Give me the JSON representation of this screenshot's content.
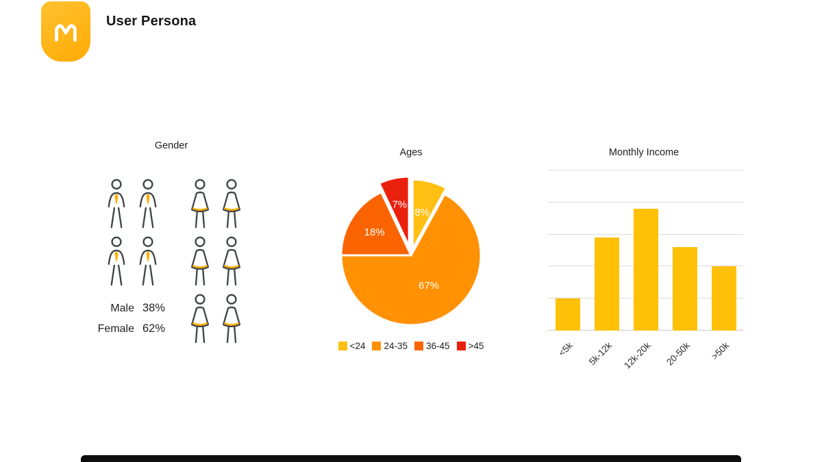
{
  "header": {
    "title": "User Persona"
  },
  "brand": {
    "logo_bg": "#FFB414",
    "glyph": "m-crown-icon"
  },
  "gender": {
    "icon_stroke": "#3F4447",
    "icon_accent": "#FFAD05"
  },
  "chart_data": [
    {
      "type": "pictogram",
      "title": "Gender",
      "categories": [
        "Male",
        "Female"
      ],
      "values": [
        38,
        62
      ],
      "unit": "%",
      "value_labels": [
        "38%",
        "62%"
      ],
      "icon_counts": [
        4,
        6
      ]
    },
    {
      "type": "pie",
      "title": "Ages",
      "labels": [
        "<24",
        "24-35",
        "36-45",
        ">45"
      ],
      "values": [
        8,
        67,
        18,
        7
      ],
      "value_labels": [
        "8%",
        "67%",
        "18%",
        "7%"
      ],
      "colors": [
        "#FFC013",
        "#FF9103",
        "#FA6400",
        "#E9200C"
      ],
      "explode": [
        0.09,
        0,
        0,
        0.13
      ],
      "legend_position": "bottom",
      "label_color": "#ffffff"
    },
    {
      "type": "bar",
      "title": "Monthly Income",
      "categories": [
        "<5k",
        "5k-12k",
        "12k-20k",
        "20-50k",
        ">50k"
      ],
      "values": [
        10,
        29,
        38,
        26,
        20
      ],
      "ylim": [
        0,
        50
      ],
      "grid_step": 10,
      "grid": true,
      "bar_color": "#FFC008"
    }
  ]
}
